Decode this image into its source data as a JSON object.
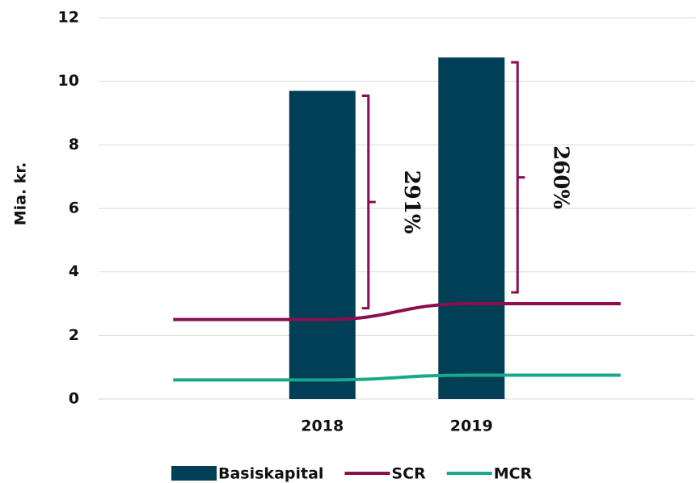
{
  "chart_data": {
    "type": "bar-line",
    "ylabel": "Mia. kr.",
    "categories": [
      null,
      "2018",
      "2019",
      null
    ],
    "series": [
      {
        "name": "Basiskapital",
        "type": "bar",
        "color": "#003f56",
        "values": [
          null,
          9.7,
          10.75,
          null
        ]
      },
      {
        "name": "SCR",
        "type": "line",
        "color": "#8c0e4f",
        "values": [
          2.5,
          2.5,
          3.0,
          3.0
        ]
      },
      {
        "name": "MCR",
        "type": "line",
        "color": "#1aa88a",
        "values": [
          0.6,
          0.6,
          0.75,
          0.75
        ]
      }
    ],
    "annotations": [
      null,
      "291%",
      "260%",
      null
    ],
    "ylim": [
      0,
      12
    ],
    "yticks": [
      0,
      2,
      4,
      6,
      8,
      10,
      12
    ],
    "grid": true
  }
}
